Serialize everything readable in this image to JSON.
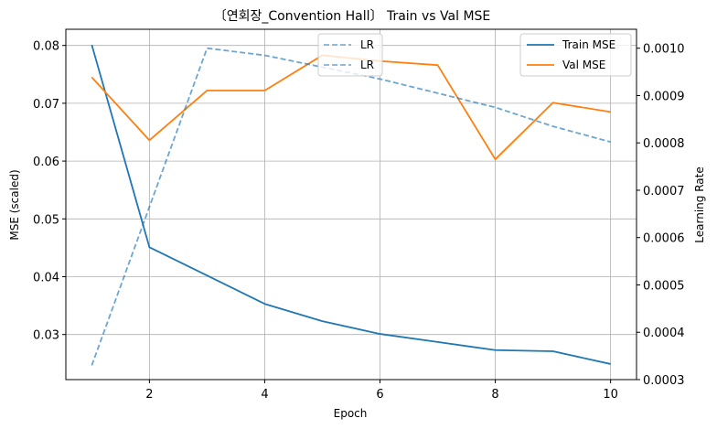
{
  "chart_data": {
    "type": "line",
    "title": "〔연회장_Convention Hall〕 Train vs Val MSE",
    "xlabel": "Epoch",
    "ylabel": "MSE (scaled)",
    "y2label": "Learning Rate",
    "x": [
      1,
      2,
      3,
      4,
      5,
      6,
      7,
      8,
      9,
      10
    ],
    "xlim": [
      0.55,
      10.45
    ],
    "ylim": [
      0.0222,
      0.0828
    ],
    "y2lim": [
      0.0003,
      0.00104
    ],
    "xticks": [
      2,
      4,
      6,
      8,
      10
    ],
    "xtick_labels": [
      "2",
      "4",
      "6",
      "8",
      "10"
    ],
    "yticks": [
      0.03,
      0.04,
      0.05,
      0.06,
      0.07,
      0.08
    ],
    "ytick_labels": [
      "0.03",
      "0.04",
      "0.05",
      "0.06",
      "0.07",
      "0.08"
    ],
    "y2ticks": [
      0.0003,
      0.0004,
      0.0005,
      0.0006,
      0.0007,
      0.0008,
      0.0009,
      0.001
    ],
    "y2tick_labels": [
      "0.0003",
      "0.0004",
      "0.0005",
      "0.0006",
      "0.0007",
      "0.0008",
      "0.0009",
      "0.0010"
    ],
    "grid": true,
    "series": [
      {
        "name": "Train MSE",
        "axis": "left",
        "color": "#1f77b4",
        "dash": "solid",
        "values": [
          0.0801,
          0.0451,
          0.0402,
          0.0353,
          0.0323,
          0.0301,
          0.0287,
          0.0273,
          0.0271,
          0.0249
        ]
      },
      {
        "name": "Val MSE",
        "axis": "left",
        "color": "#ff7f0e",
        "dash": "solid",
        "values": [
          0.0745,
          0.0636,
          0.0722,
          0.0722,
          0.0783,
          0.0773,
          0.0766,
          0.0603,
          0.0701,
          0.0685
        ]
      },
      {
        "name": "LR",
        "axis": "right",
        "color": "#1f77b4",
        "dash": "dashed",
        "opacity": 0.65,
        "values": [
          0.00033,
          0.000665,
          0.001,
          0.000985,
          0.00096,
          0.000935,
          0.000905,
          0.000875,
          0.000835,
          0.000802
        ]
      }
    ],
    "legends": [
      {
        "placement": "upper-center",
        "entries": [
          {
            "label": "LR",
            "color": "#1f77b4",
            "dash": "dashed"
          },
          {
            "label": "LR",
            "color": "#1f77b4",
            "dash": "dashed"
          }
        ]
      },
      {
        "placement": "upper-right",
        "entries": [
          {
            "label": "Train MSE",
            "color": "#1f77b4",
            "dash": "solid"
          },
          {
            "label": "Val MSE",
            "color": "#ff7f0e",
            "dash": "solid"
          }
        ]
      }
    ]
  }
}
